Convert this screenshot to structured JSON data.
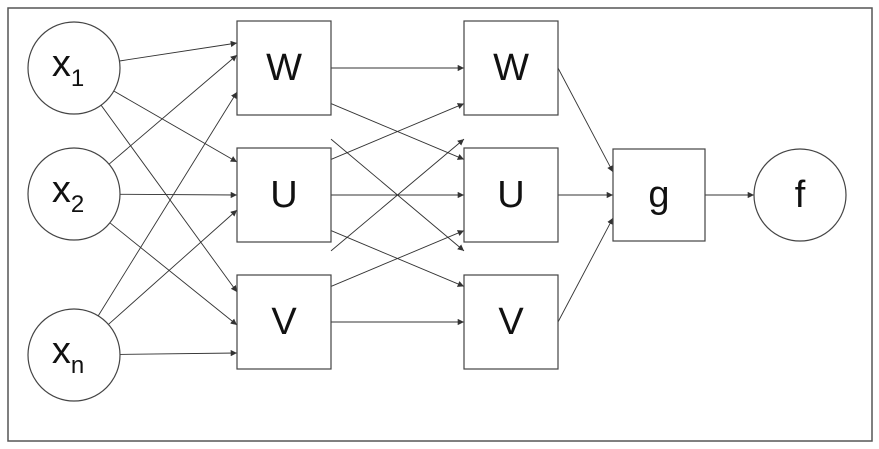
{
  "diagram": {
    "nodes": [
      {
        "id": "x1",
        "shape": "circle",
        "label": "x",
        "sub": "1"
      },
      {
        "id": "x2",
        "shape": "circle",
        "label": "x",
        "sub": "2"
      },
      {
        "id": "xn",
        "shape": "circle",
        "label": "x",
        "sub": "n"
      },
      {
        "id": "W1",
        "shape": "box",
        "label": "W"
      },
      {
        "id": "U1",
        "shape": "box",
        "label": "U"
      },
      {
        "id": "V1",
        "shape": "box",
        "label": "V"
      },
      {
        "id": "W2",
        "shape": "box",
        "label": "W"
      },
      {
        "id": "U2",
        "shape": "box",
        "label": "U"
      },
      {
        "id": "V2",
        "shape": "box",
        "label": "V"
      },
      {
        "id": "g",
        "shape": "box",
        "label": "g"
      },
      {
        "id": "f",
        "shape": "circle",
        "label": "f"
      }
    ],
    "edges": [
      [
        "x1",
        "W1"
      ],
      [
        "x1",
        "U1"
      ],
      [
        "x1",
        "V1"
      ],
      [
        "x2",
        "W1"
      ],
      [
        "x2",
        "U1"
      ],
      [
        "x2",
        "V1"
      ],
      [
        "xn",
        "W1"
      ],
      [
        "xn",
        "U1"
      ],
      [
        "xn",
        "V1"
      ],
      [
        "W1",
        "W2"
      ],
      [
        "W1",
        "U2"
      ],
      [
        "W1",
        "V2"
      ],
      [
        "U1",
        "W2"
      ],
      [
        "U1",
        "U2"
      ],
      [
        "U1",
        "V2"
      ],
      [
        "V1",
        "W2"
      ],
      [
        "V1",
        "U2"
      ],
      [
        "V1",
        "V2"
      ],
      [
        "W2",
        "g"
      ],
      [
        "U2",
        "g"
      ],
      [
        "V2",
        "g"
      ],
      [
        "g",
        "f"
      ]
    ],
    "colors": {
      "stroke": "#333333",
      "fill": "#ffffff",
      "text": "#111111"
    }
  }
}
